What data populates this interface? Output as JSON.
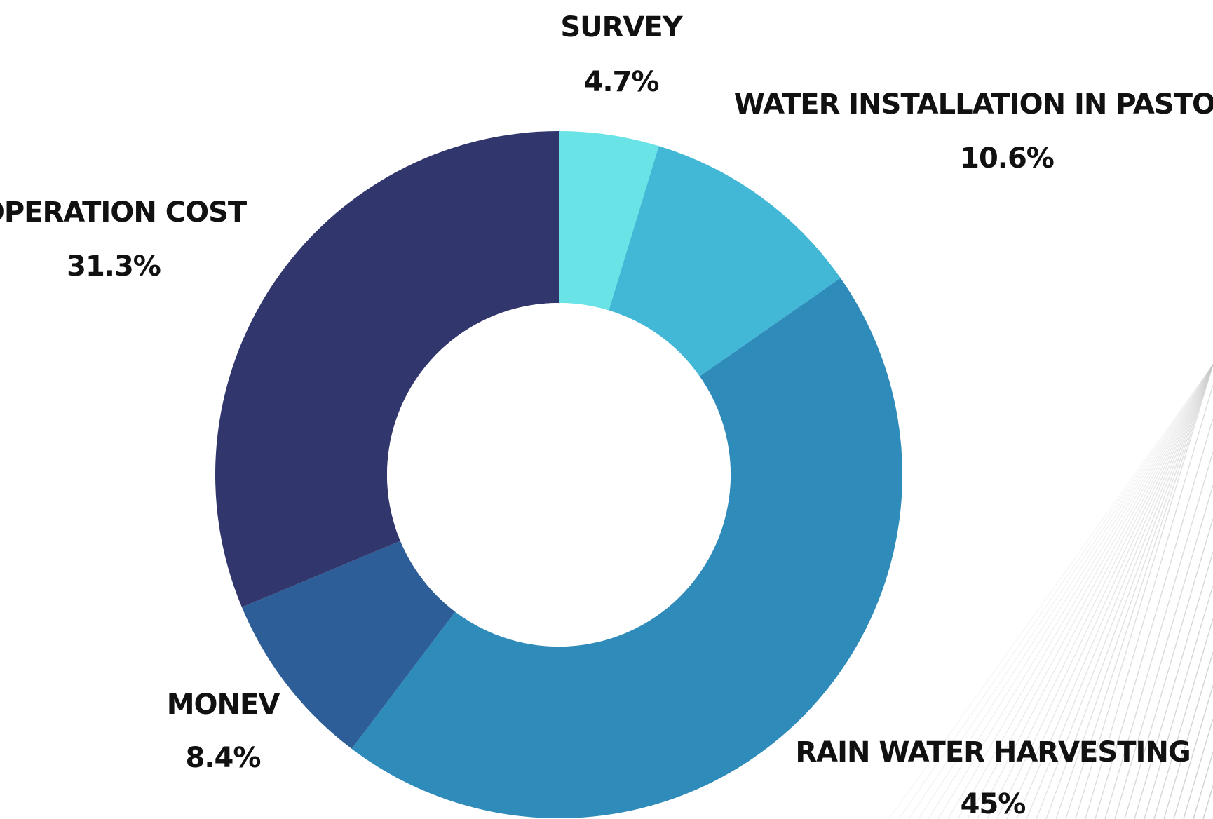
{
  "chart_data": {
    "type": "pie",
    "donut": true,
    "title": "",
    "categories": [
      "SURVEY",
      "WATER INSTALLATION IN PASTORAN",
      "RAIN WATER HARVESTING",
      "MONEV",
      "OPERATION COST"
    ],
    "values": [
      4.7,
      10.6,
      45,
      8.4,
      31.3
    ],
    "value_labels": [
      "4.7%",
      "10.6%",
      "45%",
      "8.4%",
      "31.3%"
    ],
    "colors": [
      "#6ae3e6",
      "#42b7d6",
      "#2e8bba",
      "#2d5e97",
      "#31366c"
    ],
    "legend": "none"
  }
}
